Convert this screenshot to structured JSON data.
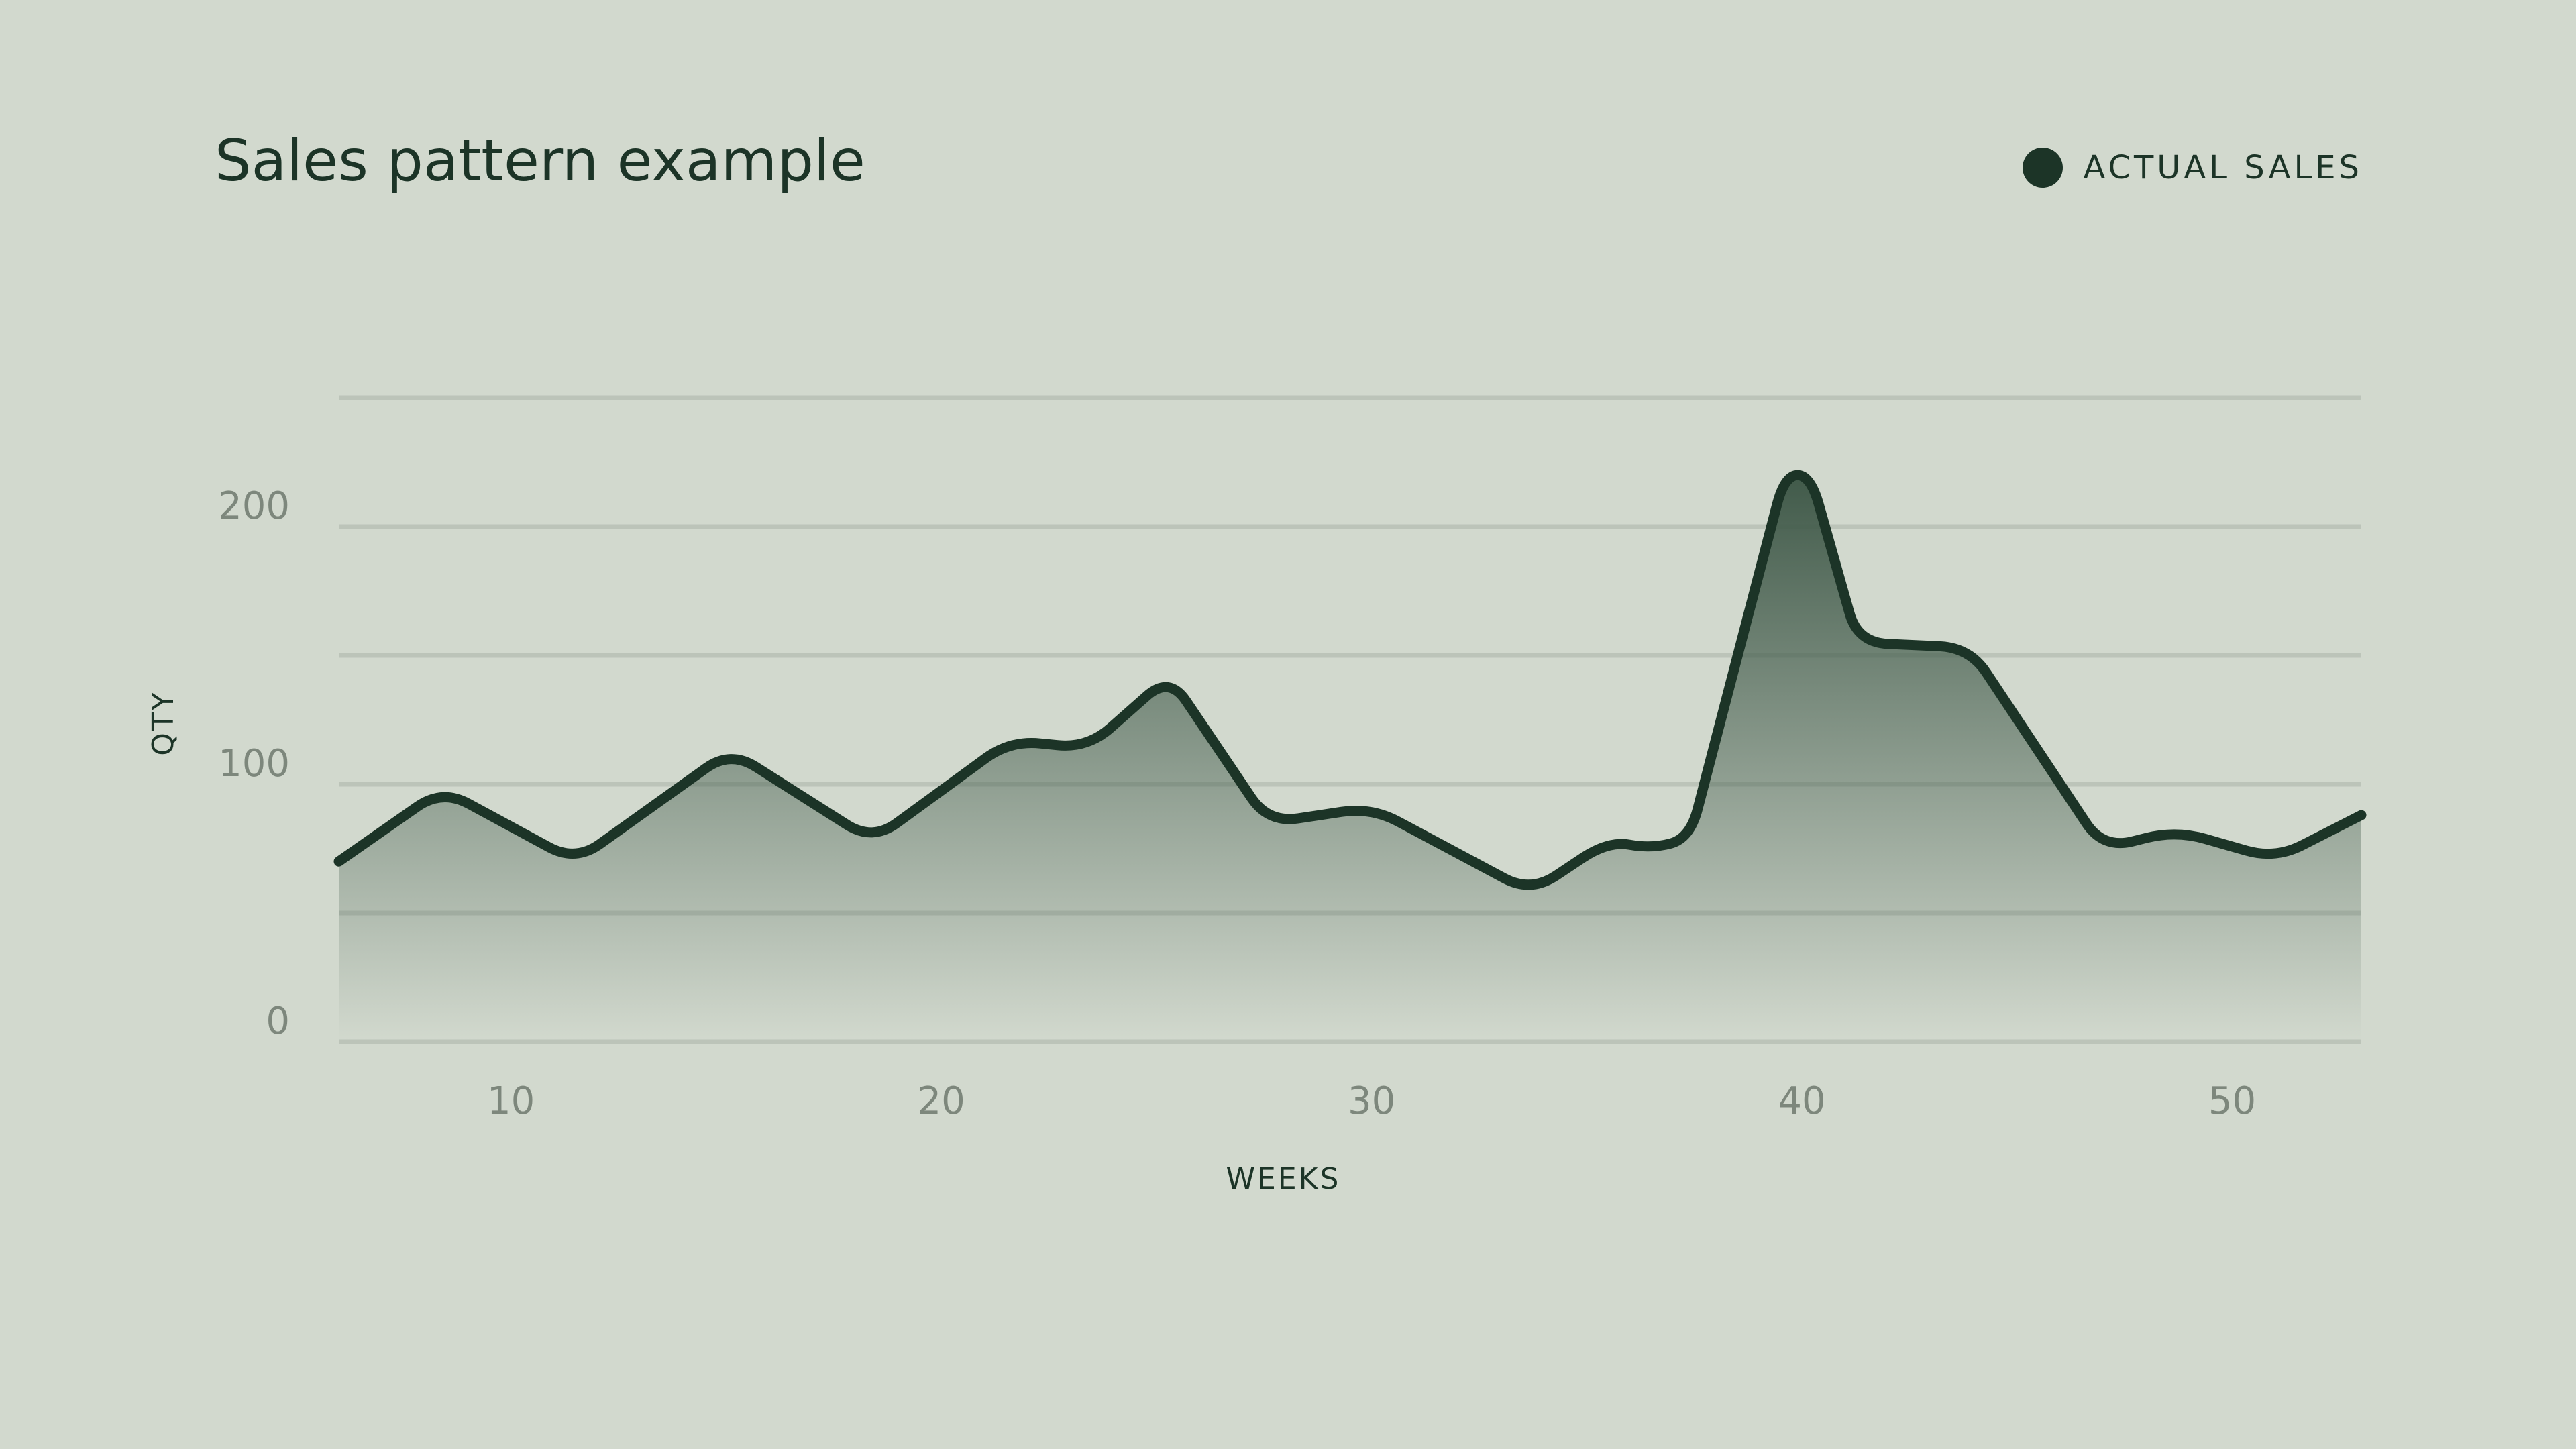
{
  "title": "Sales pattern example",
  "legend": {
    "label": "ACTUAL SALES",
    "color": "#1c3427"
  },
  "colors": {
    "background": "#d2d9ce",
    "line": "#1c3427",
    "grid": "#bcc4b9",
    "tick": "#7d877c"
  },
  "chart_data": {
    "type": "area",
    "title": "Sales pattern example",
    "xlabel": "WEEKS",
    "ylabel": "QTY",
    "xlim": [
      6,
      53
    ],
    "ylim": [
      0,
      250
    ],
    "x_ticks": [
      10,
      20,
      30,
      40,
      50
    ],
    "y_ticks": [
      0,
      100,
      200
    ],
    "y_grid": [
      0,
      50,
      100,
      150,
      200,
      250
    ],
    "grid": true,
    "legend_position": "top-right",
    "series": [
      {
        "name": "ACTUAL SALES",
        "x": [
          6,
          8.4,
          11.5,
          15.1,
          18.4,
          21.6,
          23.4,
          25.3,
          27.6,
          30,
          33.7,
          35.5,
          36.5,
          37.4,
          39.6,
          40.2,
          41.3,
          43.9,
          47,
          48.7,
          51,
          53
        ],
        "y": [
          70,
          98,
          70,
          113,
          78,
          117,
          114,
          142,
          85,
          91,
          58,
          78,
          75,
          79,
          220,
          220,
          155,
          153,
          75,
          82,
          71,
          88
        ]
      }
    ]
  }
}
